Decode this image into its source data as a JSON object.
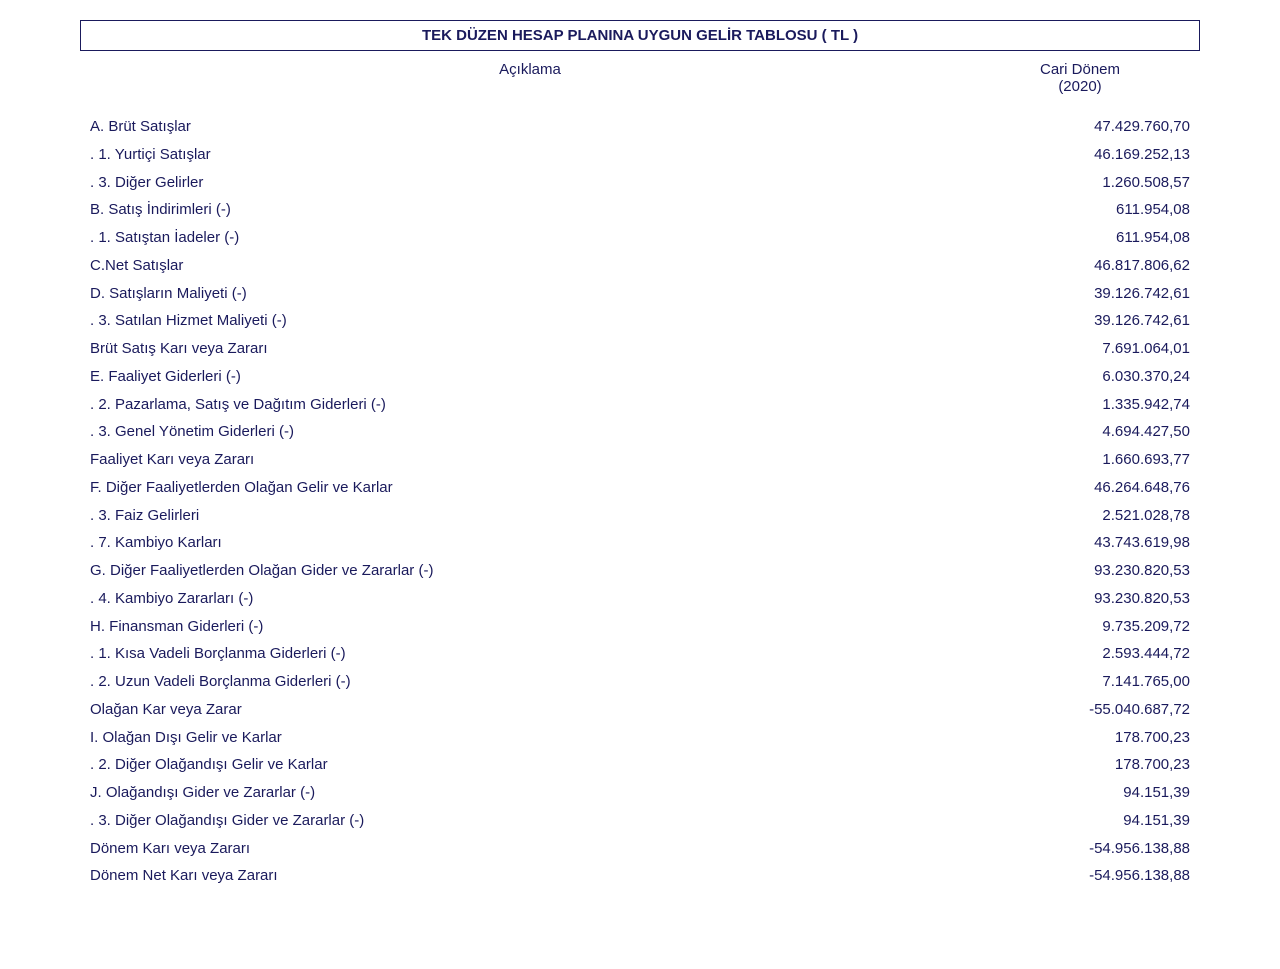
{
  "title": "TEK DÜZEN HESAP PLANINA UYGUN GELİR TABLOSU  ( TL )",
  "header": {
    "label": "Açıklama",
    "period_label": "Cari Dönem",
    "period_year": "(2020)"
  },
  "text_color": "#1a1a5c",
  "background_color": "#ffffff",
  "font_size_pt": 11,
  "rows": [
    {
      "label": "A. Brüt Satışlar",
      "value": "47.429.760,70"
    },
    {
      "label": ". 1. Yurtiçi Satışlar",
      "value": "46.169.252,13"
    },
    {
      "label": ". 3. Diğer Gelirler",
      "value": "1.260.508,57"
    },
    {
      "label": "B. Satış İndirimleri (-)",
      "value": "611.954,08"
    },
    {
      "label": ". 1. Satıştan İadeler (-)",
      "value": "611.954,08"
    },
    {
      "label": "C.Net Satışlar",
      "value": "46.817.806,62"
    },
    {
      "label": "D. Satışların Maliyeti (-)",
      "value": "39.126.742,61"
    },
    {
      "label": ". 3. Satılan Hizmet Maliyeti (-)",
      "value": "39.126.742,61"
    },
    {
      "label": "Brüt Satış Karı veya Zararı",
      "value": "7.691.064,01"
    },
    {
      "label": "E. Faaliyet Giderleri (-)",
      "value": "6.030.370,24"
    },
    {
      "label": ". 2. Pazarlama, Satış ve Dağıtım Giderleri (-)",
      "value": "1.335.942,74"
    },
    {
      "label": ". 3. Genel Yönetim Giderleri (-)",
      "value": "4.694.427,50"
    },
    {
      "label": "Faaliyet Karı veya Zararı",
      "value": "1.660.693,77"
    },
    {
      "label": "F. Diğer Faaliyetlerden Olağan Gelir ve Karlar",
      "value": "46.264.648,76"
    },
    {
      "label": ". 3. Faiz Gelirleri",
      "value": "2.521.028,78"
    },
    {
      "label": ". 7. Kambiyo Karları",
      "value": "43.743.619,98"
    },
    {
      "label": "G. Diğer Faaliyetlerden Olağan Gider ve Zararlar (-)",
      "value": "93.230.820,53"
    },
    {
      "label": ". 4. Kambiyo Zararları (-)",
      "value": "93.230.820,53"
    },
    {
      "label": "H. Finansman Giderleri (-)",
      "value": "9.735.209,72"
    },
    {
      "label": ". 1. Kısa Vadeli Borçlanma Giderleri (-)",
      "value": "2.593.444,72"
    },
    {
      "label": ". 2. Uzun Vadeli Borçlanma Giderleri (-)",
      "value": "7.141.765,00"
    },
    {
      "label": "Olağan Kar veya Zarar",
      "value": "-55.040.687,72"
    },
    {
      "label": "I. Olağan Dışı Gelir ve Karlar",
      "value": "178.700,23"
    },
    {
      "label": ". 2. Diğer Olağandışı Gelir ve Karlar",
      "value": "178.700,23"
    },
    {
      "label": "J. Olağandışı Gider ve Zararlar (-)",
      "value": "94.151,39"
    },
    {
      "label": ". 3. Diğer Olağandışı Gider ve Zararlar (-)",
      "value": "94.151,39"
    },
    {
      "label": "Dönem Karı veya Zararı",
      "value": "-54.956.138,88"
    },
    {
      "label": "Dönem Net Karı veya Zararı",
      "value": "-54.956.138,88"
    }
  ]
}
